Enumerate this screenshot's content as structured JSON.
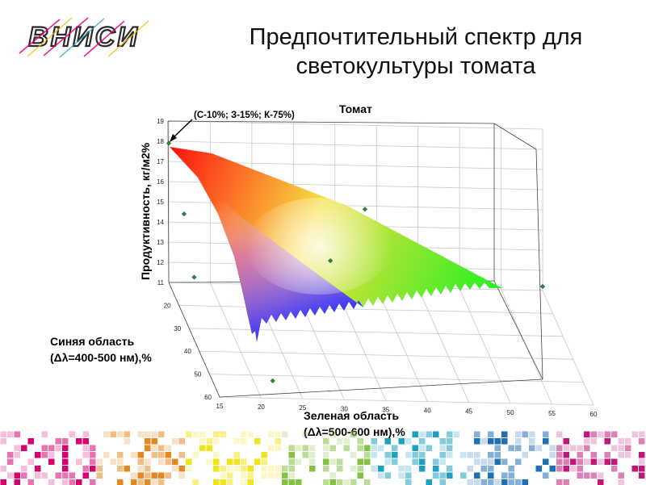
{
  "header": {
    "logo_text": "ВНИСИ",
    "title_line1": "Предпочтительный спектр для",
    "title_line2": "светокультуры томата"
  },
  "colors": {
    "logo_stroke": "#2a2a2a",
    "logo_accent": "#e3006e",
    "marker": "#2f8a3a",
    "footer_palette": [
      "#d6006f",
      "#e8861f",
      "#f2e41a",
      "#84c341",
      "#1aa0c0",
      "#1e6fb8",
      "#c0187a"
    ]
  },
  "chart_data": {
    "type": "surface3d",
    "title": "Томат",
    "annotation": "(С-10%; З-15%; К-75%)",
    "zlabel": "Продуктивность, кг/м2%",
    "ylabel_line1": "Синяя область",
    "ylabel_line2": "(Δλ=400-500 нм),%",
    "xlabel_line1": "Зеленая область",
    "xlabel_line2": "(Δλ=500-600 нм),%",
    "x_ticks": [
      15,
      20,
      25,
      30,
      35,
      40,
      45,
      50,
      55,
      60
    ],
    "y_ticks": [
      20,
      30,
      40,
      50,
      60
    ],
    "z_ticks": [
      11,
      12,
      13,
      14,
      15,
      16,
      17,
      18,
      19
    ],
    "xlim": [
      15,
      60
    ],
    "ylim": [
      10,
      60
    ],
    "zlim": [
      11,
      19
    ],
    "points": [
      {
        "green": 15,
        "blue": 10,
        "productivity": 17.9
      },
      {
        "green": 15,
        "blue": 25,
        "productivity": 16.1
      },
      {
        "green": 15,
        "blue": 35,
        "productivity": 14.1
      },
      {
        "green": 32,
        "blue": 30,
        "productivity": 14.5
      },
      {
        "green": 38,
        "blue": 15,
        "productivity": 15.4
      },
      {
        "green": 60,
        "blue": 10,
        "productivity": 11.2
      },
      {
        "green": 22,
        "blue": 55,
        "productivity": 11.3
      }
    ]
  }
}
